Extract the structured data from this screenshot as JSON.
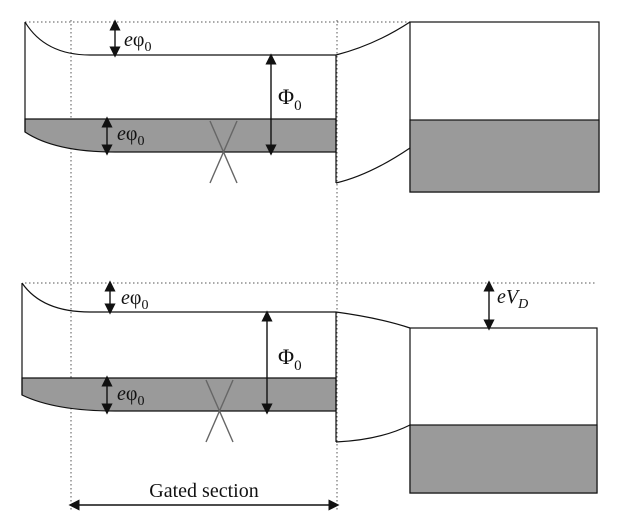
{
  "diagram": {
    "top_panel": {
      "label_work_fn_top": "eφ0",
      "label_Phi0": "Φ0",
      "label_work_fn_bottom": "eφ0"
    },
    "bottom_panel": {
      "label_work_fn_top": "eφ0",
      "label_Phi0": "Φ0",
      "label_work_fn_bottom": "eφ0",
      "label_eVD": "eVD"
    },
    "caption": "Gated section"
  },
  "colors": {
    "band_fill": "#9a9a9a",
    "line": "#111111",
    "cross": "#666666"
  }
}
